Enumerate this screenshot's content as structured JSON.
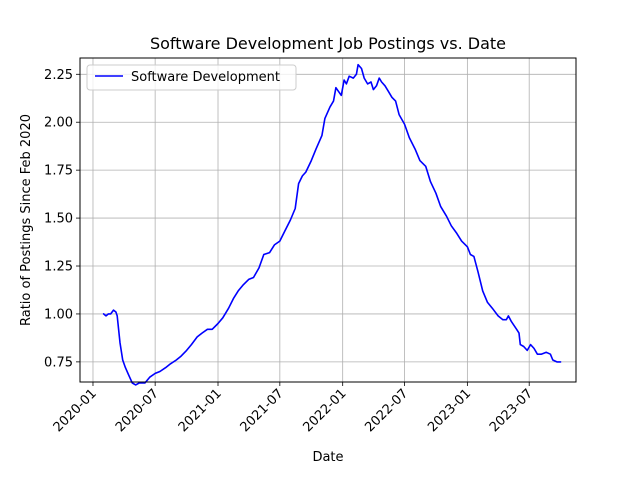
{
  "chart_data": {
    "type": "line",
    "title": "Software Development Job Postings vs. Date",
    "xlabel": "Date",
    "ylabel": "Ratio of Postings Since Feb 2020",
    "grid": true,
    "legend_position": "top-left",
    "xlim": [
      "2019-11-24",
      "2023-11-15"
    ],
    "ylim": [
      0.645,
      2.335
    ],
    "x_ticks": [
      "2020-01",
      "2020-07",
      "2021-01",
      "2021-07",
      "2022-01",
      "2022-07",
      "2023-01",
      "2023-07"
    ],
    "y_ticks": [
      "0.75",
      "1.00",
      "1.25",
      "1.50",
      "1.75",
      "2.00",
      "2.25"
    ],
    "series": [
      {
        "name": "Software Development",
        "color": "#0000ff",
        "points": [
          [
            "2020-02-01",
            1.0
          ],
          [
            "2020-02-08",
            0.99
          ],
          [
            "2020-02-15",
            1.0
          ],
          [
            "2020-02-22",
            1.0
          ],
          [
            "2020-03-01",
            1.02
          ],
          [
            "2020-03-08",
            1.01
          ],
          [
            "2020-03-12",
            0.99
          ],
          [
            "2020-03-20",
            0.85
          ],
          [
            "2020-03-28",
            0.76
          ],
          [
            "2020-04-05",
            0.72
          ],
          [
            "2020-04-15",
            0.68
          ],
          [
            "2020-04-25",
            0.64
          ],
          [
            "2020-05-05",
            0.63
          ],
          [
            "2020-05-15",
            0.64
          ],
          [
            "2020-05-25",
            0.64
          ],
          [
            "2020-06-01",
            0.64
          ],
          [
            "2020-06-15",
            0.67
          ],
          [
            "2020-07-01",
            0.69
          ],
          [
            "2020-07-15",
            0.7
          ],
          [
            "2020-08-01",
            0.72
          ],
          [
            "2020-08-15",
            0.74
          ],
          [
            "2020-09-01",
            0.76
          ],
          [
            "2020-09-15",
            0.78
          ],
          [
            "2020-10-01",
            0.81
          ],
          [
            "2020-10-15",
            0.84
          ],
          [
            "2020-11-01",
            0.88
          ],
          [
            "2020-11-15",
            0.9
          ],
          [
            "2020-12-01",
            0.92
          ],
          [
            "2020-12-15",
            0.92
          ],
          [
            "2021-01-01",
            0.95
          ],
          [
            "2021-01-15",
            0.98
          ],
          [
            "2021-02-01",
            1.03
          ],
          [
            "2021-02-15",
            1.08
          ],
          [
            "2021-03-01",
            1.12
          ],
          [
            "2021-03-15",
            1.15
          ],
          [
            "2021-04-01",
            1.18
          ],
          [
            "2021-04-15",
            1.19
          ],
          [
            "2021-05-01",
            1.24
          ],
          [
            "2021-05-15",
            1.31
          ],
          [
            "2021-06-01",
            1.32
          ],
          [
            "2021-06-15",
            1.36
          ],
          [
            "2021-07-01",
            1.38
          ],
          [
            "2021-07-15",
            1.43
          ],
          [
            "2021-08-01",
            1.49
          ],
          [
            "2021-08-15",
            1.55
          ],
          [
            "2021-08-25",
            1.68
          ],
          [
            "2021-09-05",
            1.72
          ],
          [
            "2021-09-15",
            1.74
          ],
          [
            "2021-10-01",
            1.8
          ],
          [
            "2021-10-15",
            1.86
          ],
          [
            "2021-11-01",
            1.93
          ],
          [
            "2021-11-10",
            2.02
          ],
          [
            "2021-11-25",
            2.08
          ],
          [
            "2021-12-05",
            2.11
          ],
          [
            "2021-12-12",
            2.18
          ],
          [
            "2021-12-20",
            2.16
          ],
          [
            "2021-12-28",
            2.14
          ],
          [
            "2022-01-05",
            2.22
          ],
          [
            "2022-01-12",
            2.2
          ],
          [
            "2022-01-20",
            2.24
          ],
          [
            "2022-02-01",
            2.23
          ],
          [
            "2022-02-10",
            2.25
          ],
          [
            "2022-02-15",
            2.3
          ],
          [
            "2022-02-25",
            2.28
          ],
          [
            "2022-03-05",
            2.23
          ],
          [
            "2022-03-15",
            2.2
          ],
          [
            "2022-03-25",
            2.21
          ],
          [
            "2022-04-01",
            2.17
          ],
          [
            "2022-04-10",
            2.19
          ],
          [
            "2022-04-18",
            2.23
          ],
          [
            "2022-04-25",
            2.21
          ],
          [
            "2022-05-05",
            2.19
          ],
          [
            "2022-05-15",
            2.16
          ],
          [
            "2022-05-25",
            2.13
          ],
          [
            "2022-06-05",
            2.11
          ],
          [
            "2022-06-15",
            2.04
          ],
          [
            "2022-07-01",
            1.99
          ],
          [
            "2022-07-15",
            1.92
          ],
          [
            "2022-08-01",
            1.86
          ],
          [
            "2022-08-15",
            1.8
          ],
          [
            "2022-09-01",
            1.77
          ],
          [
            "2022-09-15",
            1.69
          ],
          [
            "2022-10-01",
            1.63
          ],
          [
            "2022-10-15",
            1.56
          ],
          [
            "2022-11-01",
            1.51
          ],
          [
            "2022-11-15",
            1.46
          ],
          [
            "2022-12-01",
            1.42
          ],
          [
            "2022-12-15",
            1.38
          ],
          [
            "2023-01-01",
            1.35
          ],
          [
            "2023-01-10",
            1.31
          ],
          [
            "2023-01-20",
            1.3
          ],
          [
            "2023-02-01",
            1.22
          ],
          [
            "2023-02-15",
            1.12
          ],
          [
            "2023-03-01",
            1.06
          ],
          [
            "2023-03-15",
            1.03
          ],
          [
            "2023-04-01",
            0.99
          ],
          [
            "2023-04-15",
            0.97
          ],
          [
            "2023-04-25",
            0.97
          ],
          [
            "2023-05-01",
            0.99
          ],
          [
            "2023-05-10",
            0.96
          ],
          [
            "2023-05-25",
            0.92
          ],
          [
            "2023-06-01",
            0.9
          ],
          [
            "2023-06-05",
            0.84
          ],
          [
            "2023-06-15",
            0.83
          ],
          [
            "2023-06-25",
            0.81
          ],
          [
            "2023-07-05",
            0.84
          ],
          [
            "2023-07-15",
            0.82
          ],
          [
            "2023-07-25",
            0.79
          ],
          [
            "2023-08-05",
            0.79
          ],
          [
            "2023-08-20",
            0.8
          ],
          [
            "2023-09-01",
            0.79
          ],
          [
            "2023-09-08",
            0.76
          ],
          [
            "2023-09-20",
            0.75
          ],
          [
            "2023-10-01",
            0.75
          ]
        ]
      }
    ]
  }
}
